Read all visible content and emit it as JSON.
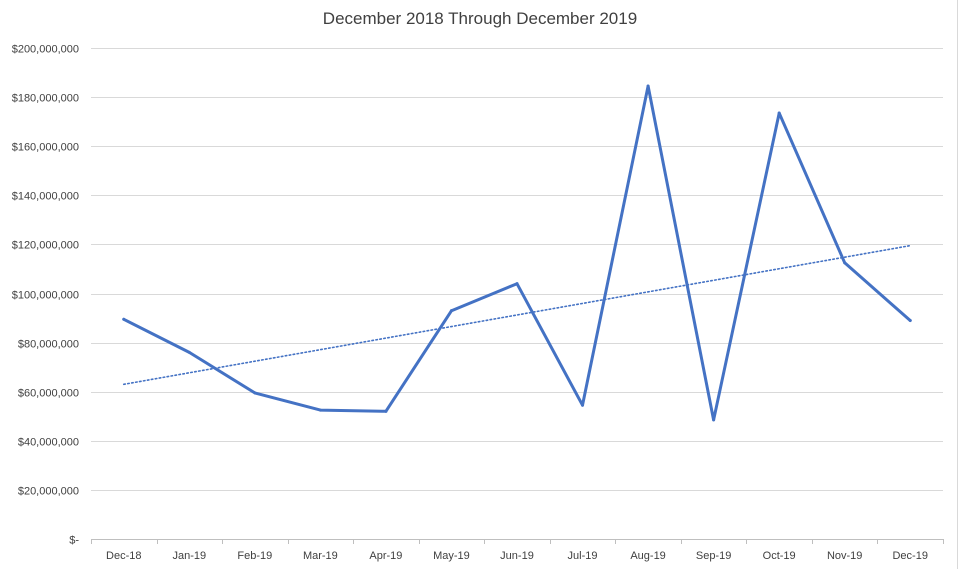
{
  "chart_data": {
    "type": "line",
    "title": "December 2018 Through December 2019",
    "xlabel": "",
    "ylabel": "",
    "categories": [
      "Dec-18",
      "Jan-19",
      "Feb-19",
      "Mar-19",
      "Apr-19",
      "May-19",
      "Jun-19",
      "Jul-19",
      "Aug-19",
      "Sep-19",
      "Oct-19",
      "Nov-19",
      "Dec-19"
    ],
    "series": [
      {
        "values": [
          89500000,
          76000000,
          59500000,
          52500000,
          52000000,
          93000000,
          104000000,
          54500000,
          184500000,
          48500000,
          173500000,
          112500000,
          89000000
        ],
        "color": "#4472C4",
        "style": "solid"
      }
    ],
    "trendline": {
      "type": "linear",
      "start": 63000000,
      "end": 119500000,
      "color": "#4472C4",
      "style": "dotted"
    },
    "ylim": [
      0,
      200000000
    ],
    "yticks": [
      {
        "value": 0,
        "label": "$-"
      },
      {
        "value": 20000000,
        "label": "$20,000,000"
      },
      {
        "value": 40000000,
        "label": "$40,000,000"
      },
      {
        "value": 60000000,
        "label": "$60,000,000"
      },
      {
        "value": 80000000,
        "label": "$80,000,000"
      },
      {
        "value": 100000000,
        "label": "$100,000,000"
      },
      {
        "value": 120000000,
        "label": "$120,000,000"
      },
      {
        "value": 140000000,
        "label": "$140,000,000"
      },
      {
        "value": 160000000,
        "label": "$160,000,000"
      },
      {
        "value": 180000000,
        "label": "$180,000,000"
      },
      {
        "value": 200000000,
        "label": "$200,000,000"
      }
    ],
    "grid": true,
    "legend": "none"
  }
}
